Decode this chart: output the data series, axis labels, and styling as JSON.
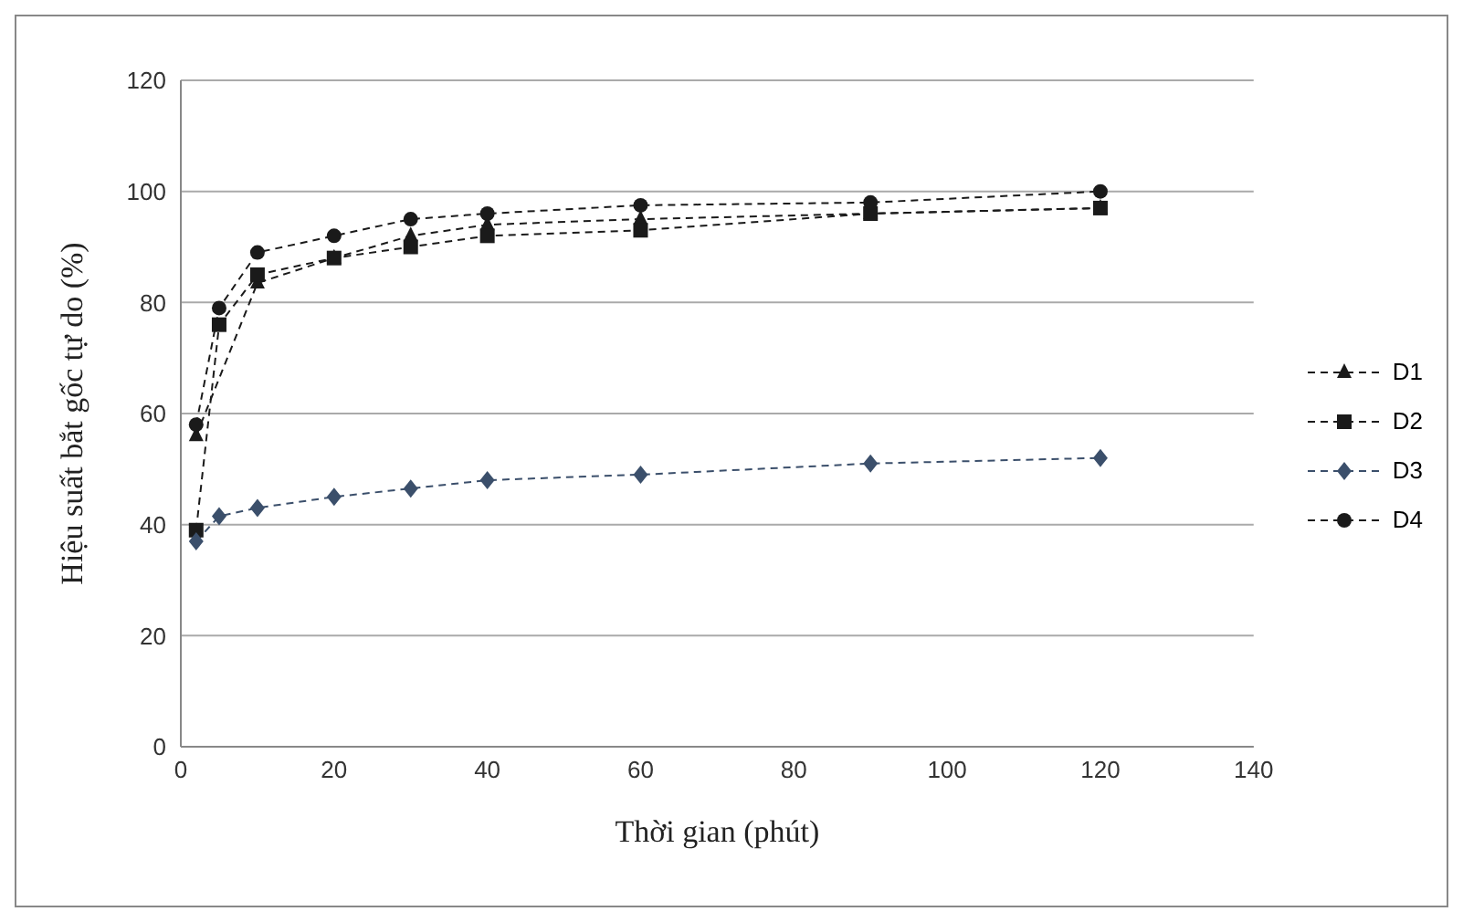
{
  "chart_data": {
    "type": "line",
    "xlabel": "Thời gian (phút)",
    "ylabel": "Hiệu suất bắt gốc tự do (%)",
    "x": [
      2,
      5,
      10,
      20,
      30,
      40,
      60,
      90,
      120
    ],
    "series": [
      {
        "name": "D1",
        "color": "#1a1a1a",
        "marker": "triangle",
        "values": [
          56,
          null,
          83.5,
          88,
          92,
          94,
          95,
          96,
          97
        ]
      },
      {
        "name": "D2",
        "color": "#1a1a1a",
        "marker": "square",
        "values": [
          39,
          76,
          85,
          88,
          90,
          92,
          93,
          96,
          97
        ]
      },
      {
        "name": "D3",
        "color": "#3b4f6b",
        "marker": "diamond",
        "values": [
          37,
          41.5,
          43,
          45,
          46.5,
          48,
          49,
          51,
          52
        ]
      },
      {
        "name": "D4",
        "color": "#1a1a1a",
        "marker": "circle",
        "values": [
          58,
          79,
          89,
          92,
          95,
          96,
          97.5,
          98,
          100
        ]
      }
    ],
    "xlim": [
      0,
      140
    ],
    "xticks": [
      0,
      20,
      40,
      60,
      80,
      100,
      120,
      140
    ],
    "ylim": [
      0,
      120
    ],
    "yticks": [
      0,
      20,
      40,
      60,
      80,
      100,
      120
    ],
    "grid": "y",
    "legend": "right",
    "line_style": "dashed"
  }
}
